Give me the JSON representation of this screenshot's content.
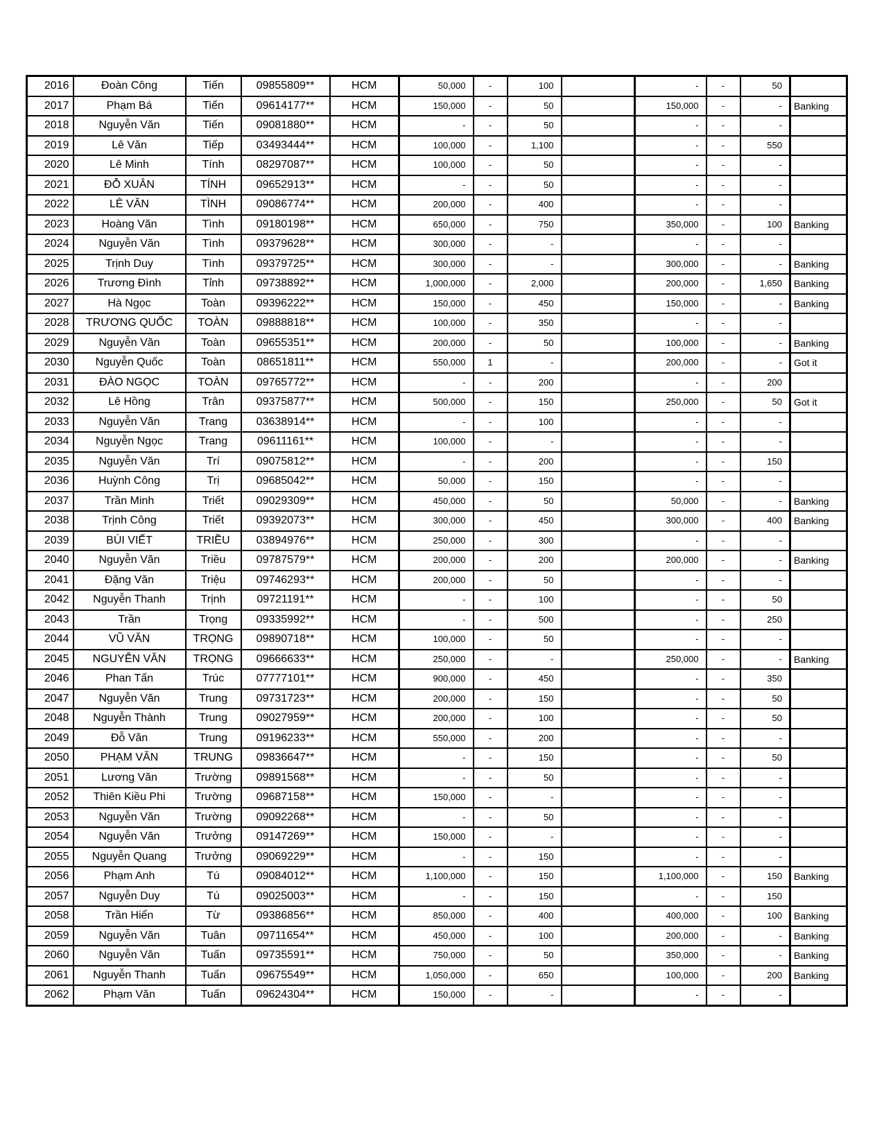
{
  "page": {
    "kind": "spreadsheet-printout",
    "city_value_repeated": "HCM",
    "status_values_seen": [
      "Banking",
      "Got it"
    ]
  },
  "colors": {
    "background": "#ffffff",
    "border": "#000000",
    "text": "#000000"
  },
  "table": {
    "columns": [
      "id",
      "given-name",
      "family-name",
      "phone-masked",
      "city",
      "amount-1",
      "dash-1",
      "qty-1",
      "empty",
      "amount-2",
      "dash-2",
      "qty-2",
      "status"
    ],
    "rows": [
      [
        "2016",
        "Đoàn Công",
        "Tiến",
        "09855809**",
        "HCM",
        "50,000",
        "-",
        "100",
        "",
        "-",
        "-",
        "50",
        ""
      ],
      [
        "2017",
        "Phạm Bá",
        "Tiến",
        "09614177**",
        "HCM",
        "150,000",
        "-",
        "50",
        "",
        "150,000",
        "-",
        "-",
        "Banking"
      ],
      [
        "2018",
        "Nguyễn Văn",
        "Tiến",
        "09081880**",
        "HCM",
        "-",
        "-",
        "50",
        "",
        "-",
        "-",
        "-",
        ""
      ],
      [
        "2019",
        "Lê Văn",
        "Tiếp",
        "03493444**",
        "HCM",
        "100,000",
        "-",
        "1,100",
        "",
        "-",
        "-",
        "550",
        ""
      ],
      [
        "2020",
        "Lê Minh",
        "Tính",
        "08297087**",
        "HCM",
        "100,000",
        "-",
        "50",
        "",
        "-",
        "-",
        "-",
        ""
      ],
      [
        "2021",
        "ĐỖ XUÂN",
        "TÍNH",
        "09652913**",
        "HCM",
        "-",
        "-",
        "50",
        "",
        "-",
        "-",
        "-",
        ""
      ],
      [
        "2022",
        "LÊ VĂN",
        "TÌNH",
        "09086774**",
        "HCM",
        "200,000",
        "-",
        "400",
        "",
        "-",
        "-",
        "-",
        ""
      ],
      [
        "2023",
        "Hoàng Văn",
        "Tình",
        "09180198**",
        "HCM",
        "650,000",
        "-",
        "750",
        "",
        "350,000",
        "-",
        "100",
        "Banking"
      ],
      [
        "2024",
        "Nguyễn Văn",
        "Tình",
        "09379628**",
        "HCM",
        "300,000",
        "-",
        "-",
        "",
        "-",
        "-",
        "-",
        ""
      ],
      [
        "2025",
        "Trịnh Duy",
        "Tình",
        "09379725**",
        "HCM",
        "300,000",
        "-",
        "-",
        "",
        "300,000",
        "-",
        "-",
        "Banking"
      ],
      [
        "2026",
        "Trương Đình",
        "Tỉnh",
        "09738892**",
        "HCM",
        "1,000,000",
        "-",
        "2,000",
        "",
        "200,000",
        "-",
        "1,650",
        "Banking"
      ],
      [
        "2027",
        "Hà Ngọc",
        "Toàn",
        "09396222**",
        "HCM",
        "150,000",
        "-",
        "450",
        "",
        "150,000",
        "-",
        "-",
        "Banking"
      ],
      [
        "2028",
        "TRƯƠNG QUỐC",
        "TOÀN",
        "09888818**",
        "HCM",
        "100,000",
        "-",
        "350",
        "",
        "-",
        "-",
        "-",
        ""
      ],
      [
        "2029",
        "Nguyễn Văn",
        "Toàn",
        "09655351**",
        "HCM",
        "200,000",
        "-",
        "50",
        "",
        "100,000",
        "-",
        "-",
        "Banking"
      ],
      [
        "2030",
        "Nguyễn Quốc",
        "Toàn",
        "08651811**",
        "HCM",
        "550,000",
        "1",
        "-",
        "",
        "200,000",
        "-",
        "-",
        "Got it"
      ],
      [
        "2031",
        "ĐÀO NGỌC",
        "TOÀN",
        "09765772**",
        "HCM",
        "-",
        "-",
        "200",
        "",
        "-",
        "-",
        "200",
        ""
      ],
      [
        "2032",
        "Lê Hồng",
        "Trân",
        "09375877**",
        "HCM",
        "500,000",
        "-",
        "150",
        "",
        "250,000",
        "-",
        "50",
        "Got it"
      ],
      [
        "2033",
        "Nguyễn Văn",
        "Trang",
        "03638914**",
        "HCM",
        "-",
        "-",
        "100",
        "",
        "-",
        "-",
        "-",
        ""
      ],
      [
        "2034",
        "Nguyễn Ngọc",
        "Trang",
        "09611161**",
        "HCM",
        "100,000",
        "-",
        "-",
        "",
        "-",
        "-",
        "-",
        ""
      ],
      [
        "2035",
        "Nguyễn Văn",
        "Trí",
        "09075812**",
        "HCM",
        "-",
        "-",
        "200",
        "",
        "-",
        "-",
        "150",
        ""
      ],
      [
        "2036",
        "Huỳnh Công",
        "Trị",
        "09685042**",
        "HCM",
        "50,000",
        "-",
        "150",
        "",
        "-",
        "-",
        "-",
        ""
      ],
      [
        "2037",
        "Trần Minh",
        "Triết",
        "09029309**",
        "HCM",
        "450,000",
        "-",
        "50",
        "",
        "50,000",
        "-",
        "-",
        "Banking"
      ],
      [
        "2038",
        "Trịnh Công",
        "Triết",
        "09392073**",
        "HCM",
        "300,000",
        "-",
        "450",
        "",
        "300,000",
        "-",
        "400",
        "Banking"
      ],
      [
        "2039",
        "BÙI VIẾT",
        "TRIỀU",
        "03894976**",
        "HCM",
        "250,000",
        "-",
        "300",
        "",
        "-",
        "-",
        "-",
        ""
      ],
      [
        "2040",
        "Nguyễn Văn",
        "Triều",
        "09787579**",
        "HCM",
        "200,000",
        "-",
        "200",
        "",
        "200,000",
        "-",
        "-",
        "Banking"
      ],
      [
        "2041",
        "Đặng Văn",
        "Triệu",
        "09746293**",
        "HCM",
        "200,000",
        "-",
        "50",
        "",
        "-",
        "-",
        "-",
        ""
      ],
      [
        "2042",
        "Nguyễn Thanh",
        "Trịnh",
        "09721191**",
        "HCM",
        "-",
        "-",
        "100",
        "",
        "-",
        "-",
        "50",
        ""
      ],
      [
        "2043",
        "Trần",
        "Trọng",
        "09335992**",
        "HCM",
        "-",
        "-",
        "500",
        "",
        "-",
        "-",
        "250",
        ""
      ],
      [
        "2044",
        "VŨ VĂN",
        "TRỌNG",
        "09890718**",
        "HCM",
        "100,000",
        "-",
        "50",
        "",
        "-",
        "-",
        "-",
        ""
      ],
      [
        "2045",
        "NGUYỄN VĂN",
        "TRỌNG",
        "09666633**",
        "HCM",
        "250,000",
        "-",
        "-",
        "",
        "250,000",
        "-",
        "-",
        "Banking"
      ],
      [
        "2046",
        "Phan Tấn",
        "Trúc",
        "07777101**",
        "HCM",
        "900,000",
        "-",
        "450",
        "",
        "-",
        "-",
        "350",
        ""
      ],
      [
        "2047",
        "Nguyễn Văn",
        "Trung",
        "09731723**",
        "HCM",
        "200,000",
        "-",
        "150",
        "",
        "-",
        "-",
        "50",
        ""
      ],
      [
        "2048",
        "Nguyễn Thành",
        "Trung",
        "09027959**",
        "HCM",
        "200,000",
        "-",
        "100",
        "",
        "-",
        "-",
        "50",
        ""
      ],
      [
        "2049",
        "Đỗ Văn",
        "Trung",
        "09196233**",
        "HCM",
        "550,000",
        "-",
        "200",
        "",
        "-",
        "-",
        "-",
        ""
      ],
      [
        "2050",
        "PHẠM VĂN",
        "TRUNG",
        "09836647**",
        "HCM",
        "-",
        "-",
        "150",
        "",
        "-",
        "-",
        "50",
        ""
      ],
      [
        "2051",
        "Lương Văn",
        "Trường",
        "09891568**",
        "HCM",
        "-",
        "-",
        "50",
        "",
        "-",
        "-",
        "-",
        ""
      ],
      [
        "2052",
        "Thiên Kiều Phi",
        "Trường",
        "09687158**",
        "HCM",
        "150,000",
        "-",
        "-",
        "",
        "-",
        "-",
        "-",
        ""
      ],
      [
        "2053",
        "Nguyễn Văn",
        "Trường",
        "09092268**",
        "HCM",
        "-",
        "-",
        "50",
        "",
        "-",
        "-",
        "-",
        ""
      ],
      [
        "2054",
        "Nguyễn Văn",
        "Trưởng",
        "09147269**",
        "HCM",
        "150,000",
        "-",
        "-",
        "",
        "-",
        "-",
        "-",
        ""
      ],
      [
        "2055",
        "Nguyễn Quang",
        "Trưởng",
        "09069229**",
        "HCM",
        "-",
        "-",
        "150",
        "",
        "-",
        "-",
        "-",
        ""
      ],
      [
        "2056",
        "Phạm Anh",
        "Tú",
        "09084012**",
        "HCM",
        "1,100,000",
        "-",
        "150",
        "",
        "1,100,000",
        "-",
        "150",
        "Banking"
      ],
      [
        "2057",
        "Nguyễn Duy",
        "Tú",
        "09025003**",
        "HCM",
        "-",
        "-",
        "150",
        "",
        "-",
        "-",
        "150",
        ""
      ],
      [
        "2058",
        "Trần Hiển",
        "Từ",
        "09386856**",
        "HCM",
        "850,000",
        "-",
        "400",
        "",
        "400,000",
        "-",
        "100",
        "Banking"
      ],
      [
        "2059",
        "Nguyễn Văn",
        "Tuân",
        "09711654**",
        "HCM",
        "450,000",
        "-",
        "100",
        "",
        "200,000",
        "-",
        "-",
        "Banking"
      ],
      [
        "2060",
        "Nguyễn Văn",
        "Tuấn",
        "09735591**",
        "HCM",
        "750,000",
        "-",
        "50",
        "",
        "350,000",
        "-",
        "-",
        "Banking"
      ],
      [
        "2061",
        "Nguyễn Thanh",
        "Tuấn",
        "09675549**",
        "HCM",
        "1,050,000",
        "-",
        "650",
        "",
        "100,000",
        "-",
        "200",
        "Banking"
      ],
      [
        "2062",
        "Phạm Văn",
        "Tuấn",
        "09624304**",
        "HCM",
        "150,000",
        "-",
        "-",
        "",
        "-",
        "-",
        "-",
        ""
      ]
    ]
  }
}
